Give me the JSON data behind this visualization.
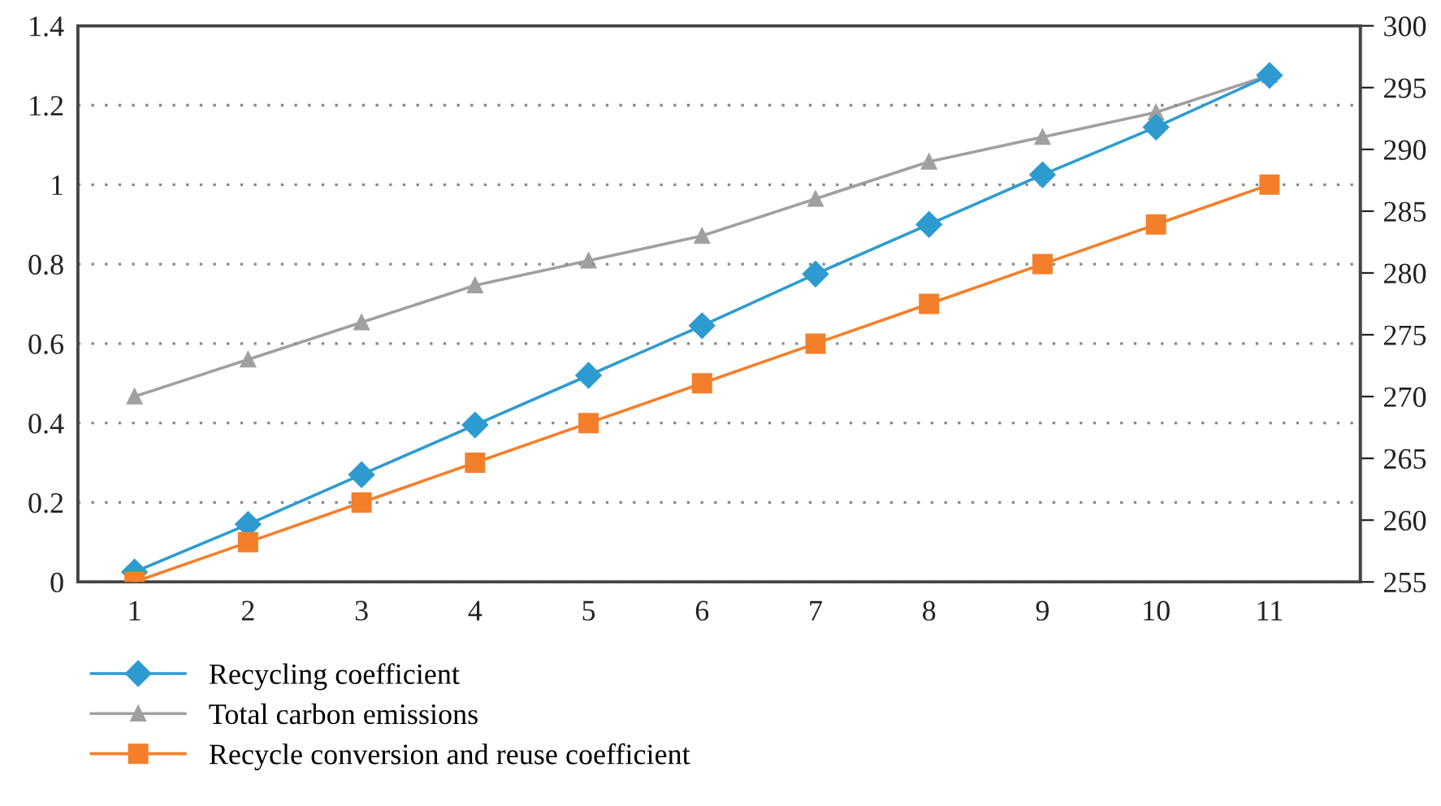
{
  "chart_data": {
    "type": "line",
    "categories": [
      "1",
      "2",
      "3",
      "4",
      "5",
      "6",
      "7",
      "8",
      "9",
      "10",
      "11"
    ],
    "series": [
      {
        "name": "Recycling coefficient",
        "color": "#2e9bd0",
        "marker": "diamond",
        "values": [
          0.025,
          0.145,
          0.27,
          0.395,
          0.52,
          0.645,
          0.775,
          0.9,
          1.025,
          1.145,
          1.275
        ]
      },
      {
        "name": "Total carbon emissions",
        "color": "#a0a0a0",
        "marker": "triangle",
        "axis": "y2",
        "values": [
          270,
          273,
          276,
          279,
          281,
          283,
          286,
          289,
          291,
          293,
          296
        ]
      },
      {
        "name": "Recycle conversion and reuse coefficient",
        "color": "#f47f2a",
        "marker": "square",
        "values": [
          0,
          0.1,
          0.2,
          0.3,
          0.4,
          0.5,
          0.6,
          0.7,
          0.8,
          0.9,
          1.0
        ]
      }
    ],
    "ylim": [
      0,
      1.4
    ],
    "yticks": [
      0,
      {
        "value": 0.2,
        "label": "0.2"
      },
      {
        "value": 0.4,
        "label": "0.4"
      },
      {
        "value": 0.6,
        "label": "0.6"
      },
      {
        "value": 0.8,
        "label": "0.8"
      },
      1,
      {
        "value": 1.2,
        "label": "1.2"
      },
      {
        "value": 1.4,
        "label": "1.4"
      }
    ],
    "y2lim": [
      255,
      300
    ],
    "y2ticks": [
      255,
      260,
      265,
      270,
      275,
      280,
      285,
      290,
      295,
      300
    ],
    "grid": "y",
    "line_style": "solid",
    "legend": "bottom left"
  }
}
